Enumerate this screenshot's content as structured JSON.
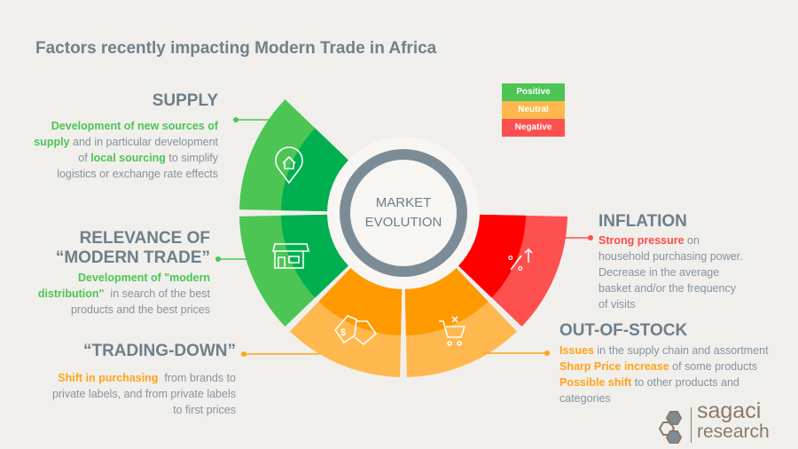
{
  "title": "Factors recently impacting Modern Trade in Africa",
  "legend": [
    {
      "label": "Positive",
      "color": "#4cc555"
    },
    {
      "label": "Neutral",
      "color": "#ffb84d"
    },
    {
      "label": "Negative",
      "color": "#ff5050"
    }
  ],
  "center": {
    "line1": "MARKET",
    "line2": "EVOLUTION"
  },
  "factors": {
    "supply": {
      "title": "SUPPLY",
      "h1": "Development of new sources of",
      "h1b": "supply",
      "t1": " and in particular development",
      "t2a": "of ",
      "h2": "local sourcing",
      "t2b": " to simplify",
      "t3": "logistics or exchange rate effects",
      "sentiment": "Positive",
      "icon": "location-home-icon"
    },
    "relevance": {
      "title1": "RELEVANCE OF",
      "title2": "“MODERN TRADE”",
      "h1": "Development of \"modern",
      "h1b": "distribution\"",
      "t1": "  in search of the best",
      "t2": "products and the best prices",
      "sentiment": "Positive",
      "icon": "storefront-icon"
    },
    "trading_down": {
      "title": "“TRADING-DOWN”",
      "h1": "Shift in purchasing",
      "t1": "  from brands to",
      "t2": "private labels, and from private labels",
      "t3": "to first prices",
      "sentiment": "Neutral",
      "icon": "price-tags-icon"
    },
    "out_of_stock": {
      "title": "OUT-OF-STOCK",
      "h1": "Issues",
      "t1": " in the supply chain and assortment",
      "h2": "Sharp Price increase",
      "t2": " of some products",
      "h3": "Possible shift",
      "t3": " to other products and",
      "t4": "categories",
      "sentiment": "Neutral",
      "icon": "cart-remove-icon"
    },
    "inflation": {
      "title": "INFLATION",
      "h1": "Strong pressure",
      "t1": " on",
      "t2": "household purchasing power.",
      "t3": "Decrease  in the average",
      "t4": "basket and/or the frequency",
      "t5": "of visits",
      "sentiment": "Negative",
      "icon": "percent-up-icon"
    }
  },
  "colors": {
    "positive_light": "#4cc555",
    "positive_dark": "#00b050",
    "neutral_light": "#ffb84d",
    "neutral_dark": "#ff9900",
    "negative_light": "#ff5050",
    "negative_dark": "#ff0000"
  },
  "logo": {
    "line1": "sagaci",
    "line2": "research"
  }
}
